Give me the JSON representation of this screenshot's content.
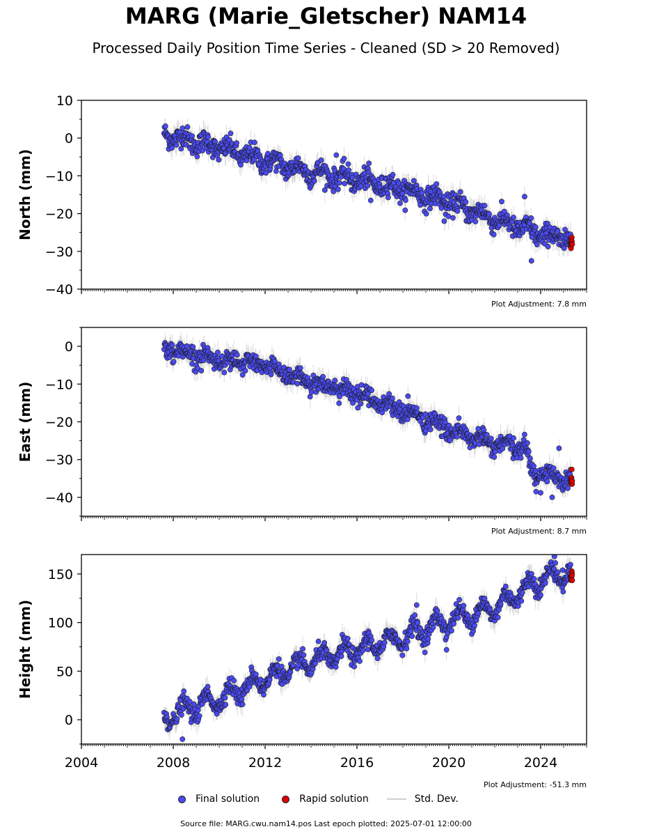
{
  "title": "MARG (Marie_Gletscher) NAM14",
  "subtitle": "Processed Daily Position Time Series - Cleaned (SD > 20 Removed)",
  "legend": {
    "final": "Final solution",
    "rapid": "Rapid solution",
    "stddev": "Std. Dev."
  },
  "footer": "Source file: MARG.cwu.nam14.pos  Last epoch plotted: 2025-07-01 12:00:00",
  "colors": {
    "final": "#4a4af0",
    "rapid": "#e00000",
    "stddev": "#bdbdbd",
    "outline": "#1a1a1a"
  },
  "chart_data": [
    {
      "type": "scatter",
      "ylabel": "North (mm)",
      "xlim": [
        2004,
        2026
      ],
      "ylim": [
        -40,
        10
      ],
      "yticks": [
        -40,
        -30,
        -20,
        -10,
        0,
        10
      ],
      "adjustment": "Plot Adjustment: 7.8 mm",
      "x_start": 2007.6,
      "x_end": 2025.3,
      "trend": [
        [
          2007.6,
          1.0
        ],
        [
          2010.0,
          -2.5
        ],
        [
          2012.0,
          -6.0
        ],
        [
          2014.0,
          -9.0
        ],
        [
          2016.0,
          -11.0
        ],
        [
          2018.0,
          -13.5
        ],
        [
          2020.0,
          -17.0
        ],
        [
          2022.0,
          -21.5
        ],
        [
          2024.0,
          -25.5
        ],
        [
          2025.3,
          -27.0
        ]
      ],
      "seasonal_amplitude": 1.2,
      "scatter_sd": 1.4,
      "rapid": {
        "x": [
          2025.3,
          2025.55
        ],
        "y": [
          -27.5,
          -28.5
        ]
      },
      "outliers": [
        [
          2023.3,
          -15.5
        ],
        [
          2023.6,
          -32.5
        ],
        [
          2019.8,
          -22.0
        ],
        [
          2015.1,
          -4.5
        ],
        [
          2016.6,
          -16.5
        ]
      ]
    },
    {
      "type": "scatter",
      "ylabel": "East (mm)",
      "xlim": [
        2004,
        2026
      ],
      "ylim": [
        -45,
        5
      ],
      "yticks": [
        -40,
        -30,
        -20,
        -10,
        0
      ],
      "adjustment": "Plot Adjustment: 8.7 mm",
      "x_start": 2007.6,
      "x_end": 2025.3,
      "trend": [
        [
          2007.6,
          -0.5
        ],
        [
          2010.0,
          -3.5
        ],
        [
          2012.0,
          -5.0
        ],
        [
          2014.0,
          -9.5
        ],
        [
          2016.0,
          -12.5
        ],
        [
          2018.0,
          -17.0
        ],
        [
          2020.0,
          -22.0
        ],
        [
          2022.0,
          -26.0
        ],
        [
          2023.4,
          -27.0
        ],
        [
          2023.6,
          -33.5
        ],
        [
          2025.3,
          -35.0
        ]
      ],
      "seasonal_amplitude": 1.0,
      "scatter_sd": 1.2,
      "rapid": {
        "x": [
          2025.3,
          2025.55
        ],
        "y": [
          -35.0,
          -35.8
        ]
      },
      "outliers": [
        [
          2024.8,
          -27.0
        ],
        [
          2024.5,
          -40.0
        ],
        [
          2023.8,
          -38.5
        ]
      ]
    },
    {
      "type": "scatter",
      "ylabel": "Height (mm)",
      "xlim": [
        2004,
        2026
      ],
      "ylim": [
        -25,
        170
      ],
      "yticks": [
        0,
        50,
        100,
        150
      ],
      "xticks": [
        2004,
        2008,
        2012,
        2016,
        2020,
        2024
      ],
      "adjustment": "Plot Adjustment: -51.3 mm",
      "x_start": 2007.6,
      "x_end": 2025.3,
      "trend": [
        [
          2007.6,
          2.0
        ],
        [
          2010.0,
          22.0
        ],
        [
          2012.0,
          42.0
        ],
        [
          2014.0,
          60.0
        ],
        [
          2016.0,
          72.0
        ],
        [
          2018.0,
          85.0
        ],
        [
          2020.0,
          102.0
        ],
        [
          2022.0,
          115.0
        ],
        [
          2024.0,
          145.0
        ],
        [
          2025.3,
          152.0
        ]
      ],
      "seasonal_amplitude": 9.0,
      "scatter_sd": 4.5,
      "rapid": {
        "x": [
          2025.3,
          2025.55
        ],
        "y": [
          146.0,
          148.0
        ]
      },
      "outliers": [
        [
          2008.4,
          -20.0
        ],
        [
          2018.6,
          118.0
        ],
        [
          2019.9,
          72.0
        ],
        [
          2024.6,
          168.0
        ]
      ]
    }
  ]
}
